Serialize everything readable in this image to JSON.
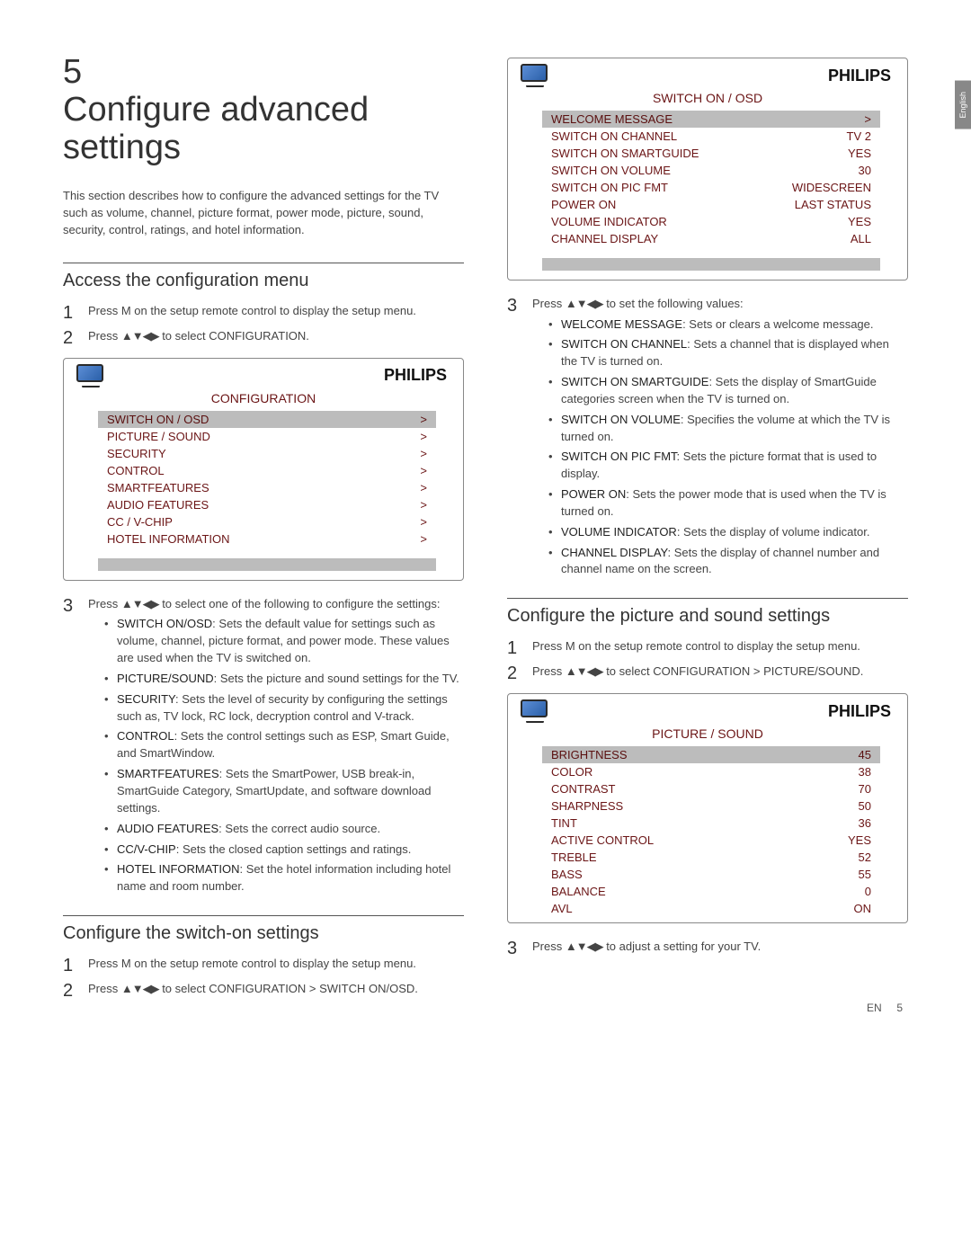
{
  "lang_tab": "English",
  "chapter": {
    "num": "5",
    "title": "Configure advanced settings"
  },
  "intro": "This section describes how to configure the advanced settings for the TV such as volume, channel, picture format, power mode, picture, sound, security, control, ratings, and hotel information.",
  "brand": "PHILIPS",
  "arrows_glyph": "▲▼◀▶",
  "sec_access": {
    "title": "Access the configuration menu",
    "step1": "Press M on the setup remote control to display the setup menu.",
    "step2_a": "Press ",
    "step2_b": " to select CONFIGURATION."
  },
  "menu_config": {
    "title": "CONFIGURATION",
    "rows": [
      {
        "label": "SWITCH ON / OSD",
        "value": ">",
        "hl": true
      },
      {
        "label": "PICTURE / SOUND",
        "value": ">"
      },
      {
        "label": "SECURITY",
        "value": ">"
      },
      {
        "label": "CONTROL",
        "value": ">"
      },
      {
        "label": "SMARTFEATURES",
        "value": ">"
      },
      {
        "label": "AUDIO FEATURES",
        "value": ">"
      },
      {
        "label": "CC / V-CHIP",
        "value": ">"
      },
      {
        "label": "HOTEL INFORMATION",
        "value": ">"
      }
    ]
  },
  "sec_access_step3_a": "Press ",
  "sec_access_step3_b": " to select one of the following to configure the settings:",
  "config_items": [
    {
      "lead": "SWITCH ON/OSD",
      "text": ": Sets the default value for settings such as volume, channel, picture format, and power mode. These values are used when the TV is switched on."
    },
    {
      "lead": "PICTURE/SOUND",
      "text": ": Sets the picture and sound settings for the TV."
    },
    {
      "lead": "SECURITY",
      "text": ": Sets the level of security by configuring the settings such as, TV lock, RC lock, decryption control and V-track."
    },
    {
      "lead": "CONTROL",
      "text": ": Sets the control settings such as ESP, Smart Guide, and SmartWindow."
    },
    {
      "lead": "SMARTFEATURES",
      "text": ": Sets the SmartPower, USB break-in, SmartGuide Category, SmartUpdate, and software download settings."
    },
    {
      "lead": "AUDIO FEATURES",
      "text": ": Sets the correct audio source."
    },
    {
      "lead": "CC/V-CHIP",
      "text": ": Sets the closed caption settings and ratings."
    },
    {
      "lead": "HOTEL INFORMATION",
      "text": ": Set the hotel information including hotel name and room number."
    }
  ],
  "sec_switchon": {
    "title": "Configure the switch-on settings",
    "step1": "Press M on the setup remote control to display the setup menu.",
    "step2_a": "Press ",
    "step2_b": " to select CONFIGURATION > SWITCH ON/OSD."
  },
  "menu_switchon": {
    "title": "SWITCH ON / OSD",
    "rows": [
      {
        "label": "WELCOME MESSAGE",
        "value": ">",
        "hl": true
      },
      {
        "label": "SWITCH ON CHANNEL",
        "value": "TV 2"
      },
      {
        "label": "SWITCH ON SMARTGUIDE",
        "value": "YES"
      },
      {
        "label": "SWITCH ON VOLUME",
        "value": "30"
      },
      {
        "label": "SWITCH ON PIC FMT",
        "value": "WIDESCREEN"
      },
      {
        "label": "POWER ON",
        "value": "LAST STATUS"
      },
      {
        "label": "VOLUME INDICATOR",
        "value": "YES"
      },
      {
        "label": "CHANNEL DISPLAY",
        "value": "ALL"
      }
    ]
  },
  "switchon_step3_a": "Press ",
  "switchon_step3_b": " to set the following values:",
  "switchon_items": [
    {
      "lead": "WELCOME MESSAGE",
      "text": ": Sets or clears a welcome message."
    },
    {
      "lead": "SWITCH ON CHANNEL",
      "text": ": Sets a channel that is displayed when the TV is turned on."
    },
    {
      "lead": "SWITCH ON SMARTGUIDE",
      "text": ": Sets the display of SmartGuide categories screen when the TV is turned on."
    },
    {
      "lead": "SWITCH ON VOLUME",
      "text": ": Specifies the volume at which the TV is turned on."
    },
    {
      "lead": "SWITCH ON PIC FMT",
      "text": ": Sets the picture format that is used to display."
    },
    {
      "lead": "POWER ON",
      "text": ": Sets the power mode that is used when the TV is turned on."
    },
    {
      "lead": "VOLUME INDICATOR",
      "text": ": Sets the display of volume indicator."
    },
    {
      "lead": "CHANNEL DISPLAY",
      "text": ": Sets the display of channel number and channel name on the screen."
    }
  ],
  "sec_picture": {
    "title": "Configure the picture and sound settings",
    "step1": "Press M on the setup remote control to display the setup menu.",
    "step2_a": "Press ",
    "step2_b": " to select CONFIGURATION > PICTURE/SOUND."
  },
  "menu_picture": {
    "title": "PICTURE / SOUND",
    "rows": [
      {
        "label": "BRIGHTNESS",
        "value": "45",
        "hl": true
      },
      {
        "label": "COLOR",
        "value": "38"
      },
      {
        "label": "CONTRAST",
        "value": "70"
      },
      {
        "label": "SHARPNESS",
        "value": "50"
      },
      {
        "label": "TINT",
        "value": "36"
      },
      {
        "label": "ACTIVE CONTROL",
        "value": "YES"
      },
      {
        "label": "TREBLE",
        "value": "52"
      },
      {
        "label": "BASS",
        "value": "55"
      },
      {
        "label": "BALANCE",
        "value": "0"
      },
      {
        "label": "AVL",
        "value": "ON"
      }
    ]
  },
  "picture_step3_a": "Press ",
  "picture_step3_b": " to adjust a setting for your TV.",
  "footer": {
    "lang": "EN",
    "page": "5"
  }
}
